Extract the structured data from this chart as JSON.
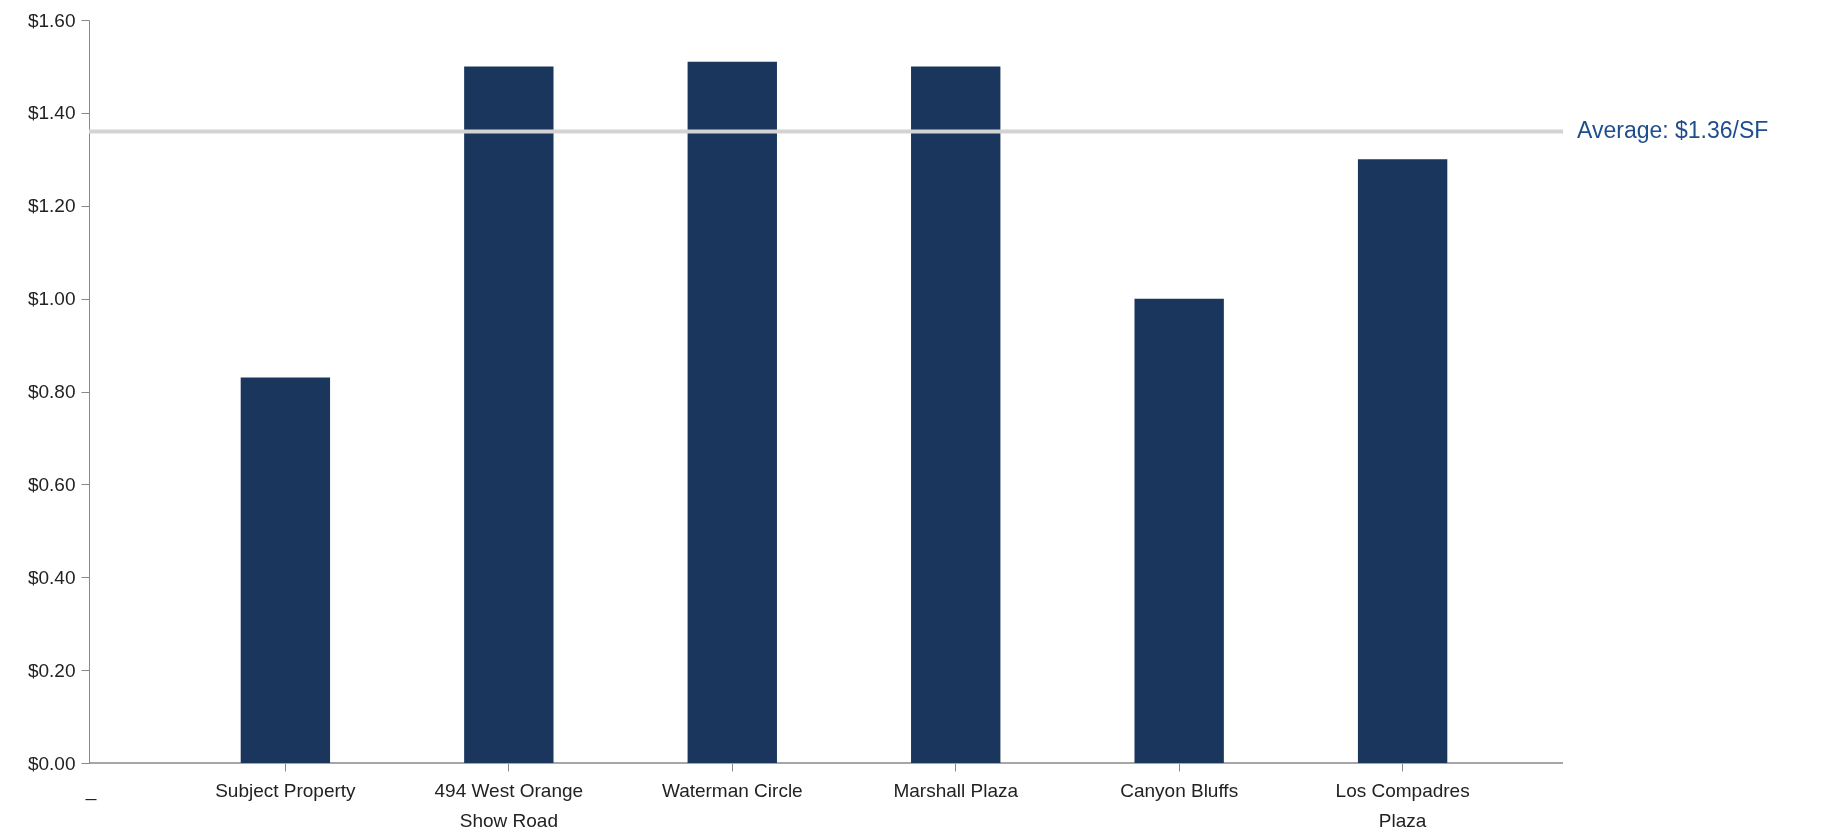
{
  "chart_data": {
    "type": "bar",
    "categories": [
      "Subject Property",
      "494 West Orange Show Road",
      "Waterman Circle",
      "Marshall Plaza",
      "Canyon Bluffs",
      "Los Compadres Plaza"
    ],
    "values": [
      0.83,
      1.5,
      1.51,
      1.5,
      1.0,
      1.3
    ],
    "color": "#1a365d",
    "ylim": [
      0,
      1.6
    ],
    "yticks": [
      {
        "value": 0,
        "label": "$0.00"
      },
      {
        "value": 0.2,
        "label": "$0.20"
      },
      {
        "value": 0.4,
        "label": "$0.40"
      },
      {
        "value": 0.6,
        "label": "$0.60"
      },
      {
        "value": 0.8,
        "label": "$0.80"
      },
      {
        "value": 1.0,
        "label": "$1.00"
      },
      {
        "value": 1.2,
        "label": "$1.20"
      },
      {
        "value": 1.4,
        "label": "$1.40"
      },
      {
        "value": 1.6,
        "label": "$1.60"
      }
    ],
    "ref_lines": [
      {
        "axis": "y",
        "value": 1.36,
        "label": "Average: $1.36/SF",
        "color": "#d3d3d3"
      }
    ],
    "annotations": [
      "_"
    ],
    "grid": false
  }
}
